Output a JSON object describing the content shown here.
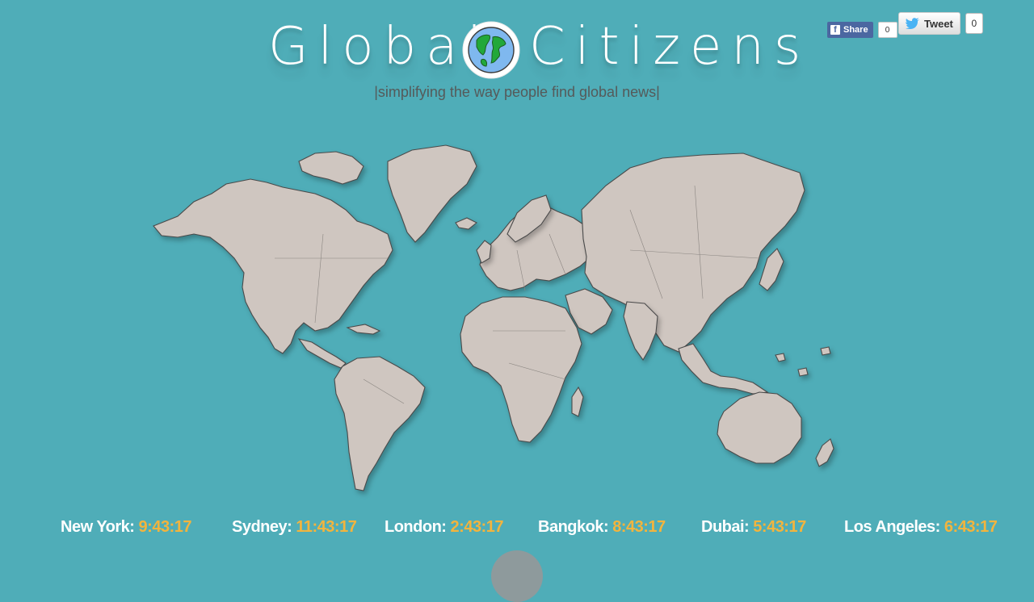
{
  "header": {
    "title_left": "Global",
    "title_right": "Citizens",
    "tagline": "|simplifying the way people find global news|"
  },
  "social": {
    "facebook": {
      "label": "Share",
      "count": "0"
    },
    "twitter": {
      "label": "Tweet",
      "count": "0"
    }
  },
  "clocks": [
    {
      "city": "New York:",
      "time": "9:43:17"
    },
    {
      "city": "Sydney:",
      "time": "11:43:17"
    },
    {
      "city": "London:",
      "time": "2:43:17"
    },
    {
      "city": "Bangkok:",
      "time": "8:43:17"
    },
    {
      "city": "Dubai:",
      "time": "5:43:17"
    },
    {
      "city": "Los Angeles:",
      "time": "6:43:17"
    }
  ],
  "colors": {
    "background": "#4fadb8",
    "land": "#cfc6c0",
    "time_accent": "#f3b43d",
    "facebook": "#4b67a1"
  },
  "icons": {
    "logo_globe": "globe-icon",
    "facebook": "facebook-icon",
    "twitter": "twitter-bird-icon"
  }
}
